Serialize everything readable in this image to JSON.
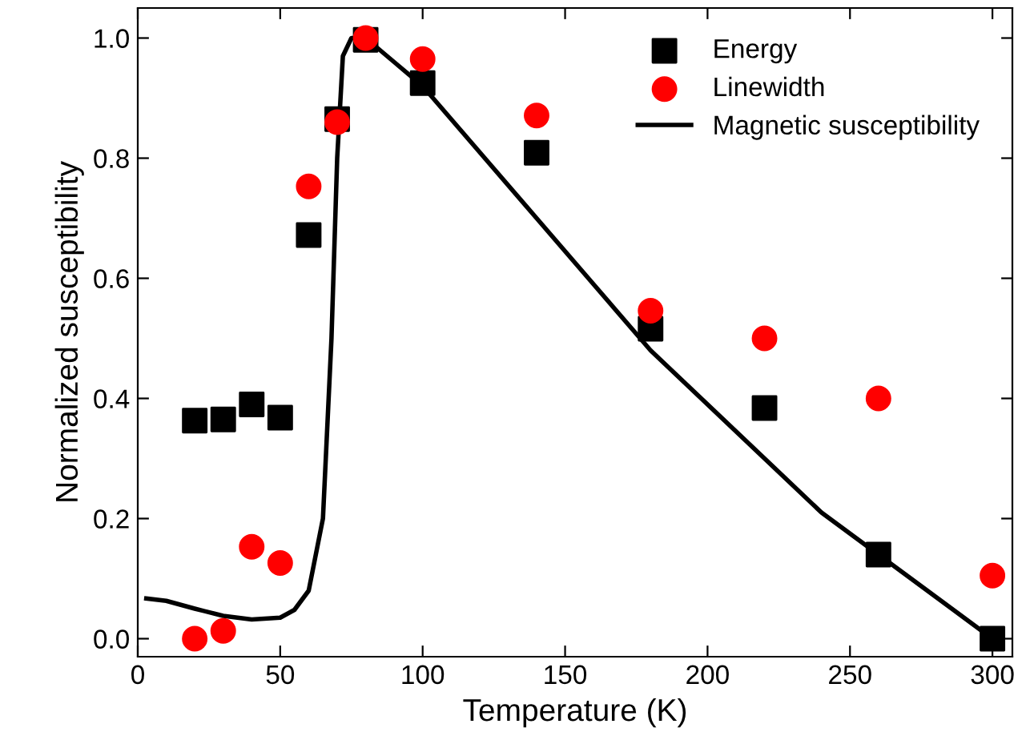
{
  "chart_data": {
    "type": "scatter",
    "xlabel": "Temperature (K)",
    "ylabel": "Normalized susceptibility",
    "xlim": [
      0,
      307
    ],
    "ylim": [
      -0.03,
      1.05
    ],
    "xticks": [
      0,
      50,
      100,
      150,
      200,
      250,
      300
    ],
    "yticks": [
      {
        "value": 0,
        "label": "0.0"
      },
      {
        "value": 0.2,
        "label": "0.2"
      },
      {
        "value": 0.4,
        "label": "0.4"
      },
      {
        "value": 0.6,
        "label": "0.6"
      },
      {
        "value": 0.8,
        "label": "0.8"
      },
      {
        "value": 1.0,
        "label": "1.0"
      }
    ],
    "legend": "top right",
    "grid": false,
    "series": [
      {
        "name": "Energy",
        "marker": "square",
        "color": "#000000",
        "x": [
          20,
          30,
          40,
          50,
          60,
          70,
          80,
          100,
          140,
          180,
          220,
          260,
          300
        ],
        "values": [
          0.363,
          0.365,
          0.39,
          0.368,
          0.672,
          0.865,
          0.997,
          0.925,
          0.809,
          0.516,
          0.384,
          0.14,
          0.0
        ]
      },
      {
        "name": "Linewidth",
        "marker": "circle",
        "color": "#ff0000",
        "x": [
          20,
          30,
          40,
          50,
          60,
          70,
          80,
          100,
          140,
          180,
          220,
          260,
          300
        ],
        "values": [
          0.0,
          0.013,
          0.153,
          0.126,
          0.753,
          0.86,
          1.0,
          0.965,
          0.871,
          0.546,
          0.5,
          0.4,
          0.105
        ]
      },
      {
        "name": "Magnetic susceptibility",
        "type": "line",
        "line_style": "solid",
        "color": "#000000",
        "x": [
          3,
          10,
          20,
          30,
          40,
          50,
          55,
          60,
          65,
          68,
          70,
          72,
          75,
          80,
          90,
          100,
          120,
          140,
          160,
          180,
          200,
          220,
          240,
          260,
          280,
          300
        ],
        "values": [
          0.067,
          0.063,
          0.05,
          0.038,
          0.032,
          0.035,
          0.048,
          0.08,
          0.2,
          0.5,
          0.8,
          0.97,
          1.0,
          1.0,
          0.96,
          0.92,
          0.81,
          0.7,
          0.59,
          0.48,
          0.39,
          0.3,
          0.21,
          0.14,
          0.07,
          0.0
        ]
      }
    ]
  }
}
